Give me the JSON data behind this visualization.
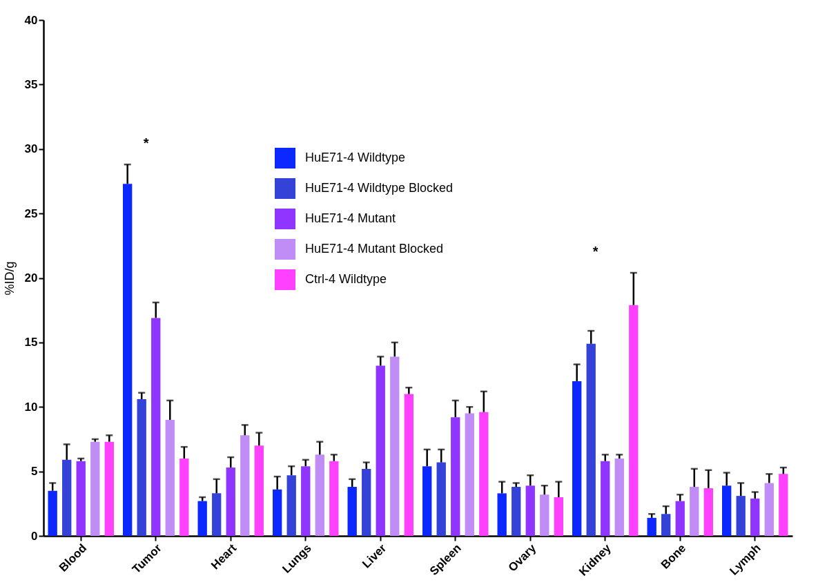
{
  "chart_data": {
    "type": "bar",
    "ylabel": "%ID/g",
    "categories": [
      "Blood",
      "Tumor",
      "Heart",
      "Lungs",
      "Liver",
      "Spleen",
      "Ovary",
      "Kidney",
      "Bone",
      "Lymph"
    ],
    "ylim": [
      0,
      40
    ],
    "yticks": [
      0,
      5,
      10,
      15,
      20,
      25,
      30,
      35,
      40
    ],
    "grid": false,
    "legend": "top",
    "series": [
      {
        "name": "HuE71-4 Wildtype",
        "color": "#0a28ff",
        "values": [
          3.5,
          27.3,
          2.7,
          3.6,
          3.8,
          5.4,
          3.3,
          12.0,
          1.4,
          3.9
        ],
        "errors": [
          [
            3.5,
            4.1
          ],
          [
            27.3,
            28.8
          ],
          [
            2.7,
            3.0
          ],
          [
            3.6,
            4.6
          ],
          [
            3.8,
            4.4
          ],
          [
            5.4,
            6.7
          ],
          [
            3.3,
            4.2
          ],
          [
            12.0,
            13.3
          ],
          [
            1.4,
            1.7
          ],
          [
            3.9,
            4.9
          ]
        ]
      },
      {
        "name": "HuE71-4 Wildtype Blocked",
        "color": "#3442d8",
        "values": [
          5.9,
          10.6,
          3.3,
          4.7,
          5.2,
          5.7,
          3.8,
          14.9,
          1.7,
          3.1
        ],
        "errors": [
          [
            5.9,
            7.1
          ],
          [
            10.6,
            11.1
          ],
          [
            3.3,
            4.4
          ],
          [
            4.7,
            5.4
          ],
          [
            5.2,
            5.7
          ],
          [
            5.7,
            6.7
          ],
          [
            3.8,
            4.1
          ],
          [
            14.9,
            15.9
          ],
          [
            1.7,
            2.3
          ],
          [
            3.1,
            4.1
          ]
        ]
      },
      {
        "name": "HuE71-4 Mutant",
        "color": "#9035ff",
        "values": [
          5.8,
          16.9,
          5.3,
          5.4,
          13.2,
          9.2,
          3.9,
          5.8,
          2.7,
          2.9
        ],
        "errors": [
          [
            5.8,
            6.0
          ],
          [
            16.9,
            18.1
          ],
          [
            5.3,
            6.1
          ],
          [
            5.4,
            5.9
          ],
          [
            13.2,
            13.9
          ],
          [
            9.2,
            10.5
          ],
          [
            3.9,
            4.7
          ],
          [
            5.8,
            6.3
          ],
          [
            2.7,
            3.2
          ],
          [
            2.9,
            3.4
          ]
        ]
      },
      {
        "name": "HuE71-4 Mutant Blocked",
        "color": "#c08cf5",
        "values": [
          7.3,
          9.0,
          7.8,
          6.3,
          13.9,
          9.5,
          3.2,
          6.0,
          3.8,
          4.1
        ],
        "errors": [
          [
            7.3,
            7.5
          ],
          [
            9.0,
            10.5
          ],
          [
            7.8,
            8.6
          ],
          [
            6.3,
            7.3
          ],
          [
            13.9,
            15.0
          ],
          [
            9.5,
            10.0
          ],
          [
            3.2,
            3.9
          ],
          [
            6.0,
            6.3
          ],
          [
            3.8,
            5.2
          ],
          [
            4.1,
            4.8
          ]
        ]
      },
      {
        "name": "Ctrl-4 Wildtype",
        "color": "#ff40ff",
        "values": [
          7.3,
          6.0,
          7.0,
          5.8,
          11.0,
          9.6,
          3.0,
          17.9,
          3.7,
          4.8
        ],
        "errors": [
          [
            7.3,
            7.8
          ],
          [
            6.0,
            6.9
          ],
          [
            7.0,
            8.0
          ],
          [
            5.8,
            6.3
          ],
          [
            11.0,
            11.5
          ],
          [
            9.6,
            11.2
          ],
          [
            3.0,
            4.2
          ],
          [
            17.9,
            20.4
          ],
          [
            3.7,
            5.1
          ],
          [
            4.8,
            5.3
          ]
        ]
      }
    ],
    "annotations": [
      "*",
      "*"
    ]
  }
}
